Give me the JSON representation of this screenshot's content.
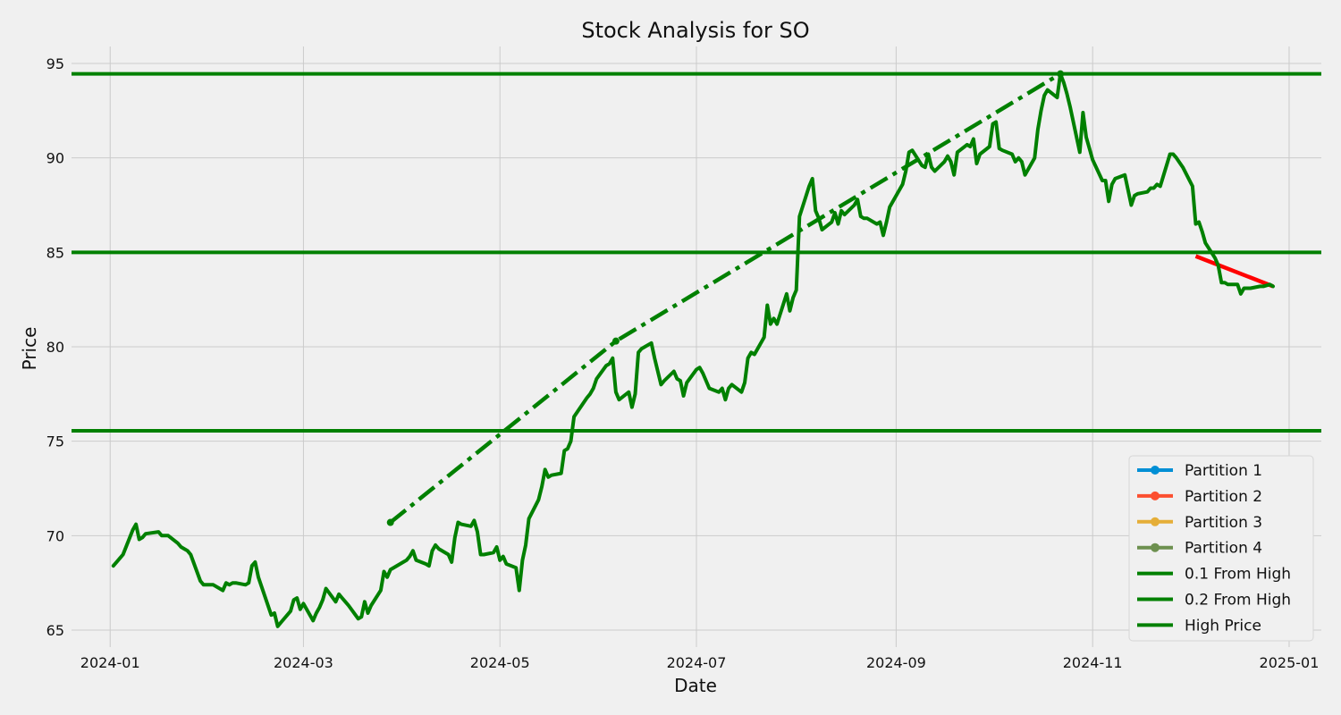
{
  "chart_data": {
    "type": "line",
    "title": "Stock Analysis for SO",
    "xlabel": "Date",
    "ylabel": "Price",
    "xlim": [
      "2023-12-20",
      "2025-01-11"
    ],
    "ylim": [
      64.1,
      95.9
    ],
    "x_ticks": [
      "2024-01",
      "2024-03",
      "2024-05",
      "2024-07",
      "2024-09",
      "2024-11",
      "2025-01"
    ],
    "y_ticks": [
      65,
      70,
      75,
      80,
      85,
      90,
      95
    ],
    "grid": true,
    "legend_position": "lower-right",
    "horizontal_lines": [
      {
        "name": "0.1 From High",
        "value": 85.0,
        "color": "#008000"
      },
      {
        "name": "0.2 From High",
        "value": 75.55,
        "color": "#008000"
      },
      {
        "name": "High Price",
        "value": 94.45,
        "color": "#008000"
      }
    ],
    "trend_lines": [
      {
        "style": "dashdot",
        "color": "#008000",
        "points": [
          [
            "2024-03-28",
            70.7
          ],
          [
            "2024-06-06",
            80.3
          ],
          [
            "2024-10-22",
            94.45
          ]
        ]
      },
      {
        "style": "solid",
        "color": "#ff0000",
        "points": [
          [
            "2024-12-03",
            84.8
          ],
          [
            "2024-12-27",
            83.2
          ]
        ]
      }
    ],
    "series": [
      {
        "name": "Partition 1",
        "color": "#008fd5",
        "points": [
          [
            "2024-01-02",
            68.4
          ],
          [
            "2024-01-03",
            68.6
          ],
          [
            "2024-01-04",
            68.8
          ],
          [
            "2024-01-05",
            69.0
          ],
          [
            "2024-01-08",
            70.3
          ],
          [
            "2024-01-09",
            70.6
          ],
          [
            "2024-01-10",
            69.8
          ],
          [
            "2024-01-11",
            69.9
          ],
          [
            "2024-01-12",
            70.1
          ],
          [
            "2024-01-16",
            70.2
          ],
          [
            "2024-01-17",
            70.0
          ],
          [
            "2024-01-18",
            70.0
          ],
          [
            "2024-01-19",
            70.0
          ],
          [
            "2024-01-22",
            69.6
          ],
          [
            "2024-01-23",
            69.4
          ],
          [
            "2024-01-24",
            69.3
          ],
          [
            "2024-01-25",
            69.2
          ],
          [
            "2024-01-26",
            69.0
          ],
          [
            "2024-01-29",
            67.6
          ],
          [
            "2024-01-30",
            67.4
          ],
          [
            "2024-01-31",
            67.4
          ],
          [
            "2024-02-01",
            67.4
          ],
          [
            "2024-02-02",
            67.4
          ],
          [
            "2024-02-05",
            67.1
          ],
          [
            "2024-02-06",
            67.5
          ],
          [
            "2024-02-07",
            67.4
          ],
          [
            "2024-02-08",
            67.5
          ],
          [
            "2024-02-09",
            67.5
          ],
          [
            "2024-02-12",
            67.4
          ],
          [
            "2024-02-13",
            67.5
          ],
          [
            "2024-02-14",
            68.4
          ],
          [
            "2024-02-15",
            68.6
          ],
          [
            "2024-02-16",
            67.8
          ],
          [
            "2024-02-20",
            65.8
          ],
          [
            "2024-02-21",
            65.9
          ],
          [
            "2024-02-22",
            65.2
          ],
          [
            "2024-02-23",
            65.4
          ],
          [
            "2024-02-26",
            66.0
          ],
          [
            "2024-02-27",
            66.6
          ],
          [
            "2024-02-28",
            66.7
          ],
          [
            "2024-02-29",
            66.1
          ],
          [
            "2024-03-01",
            66.4
          ],
          [
            "2024-03-04",
            65.5
          ],
          [
            "2024-03-05",
            65.9
          ],
          [
            "2024-03-06",
            66.2
          ],
          [
            "2024-03-07",
            66.6
          ],
          [
            "2024-03-08",
            67.2
          ],
          [
            "2024-03-11",
            66.5
          ],
          [
            "2024-03-12",
            66.9
          ],
          [
            "2024-03-13",
            66.7
          ],
          [
            "2024-03-14",
            66.5
          ],
          [
            "2024-03-15",
            66.3
          ],
          [
            "2024-03-18",
            65.6
          ],
          [
            "2024-03-19",
            65.7
          ],
          [
            "2024-03-20",
            66.5
          ],
          [
            "2024-03-21",
            65.9
          ],
          [
            "2024-03-22",
            66.3
          ],
          [
            "2024-03-25",
            67.1
          ],
          [
            "2024-03-26",
            68.1
          ],
          [
            "2024-03-27",
            67.8
          ],
          [
            "2024-03-28",
            68.2
          ]
        ]
      },
      {
        "name": "Partition 2",
        "color": "#fc4f30",
        "points": [
          [
            "2024-04-01",
            68.6
          ],
          [
            "2024-04-02",
            68.7
          ],
          [
            "2024-04-03",
            68.9
          ],
          [
            "2024-04-04",
            69.2
          ],
          [
            "2024-04-05",
            68.7
          ],
          [
            "2024-04-08",
            68.5
          ],
          [
            "2024-04-09",
            68.4
          ],
          [
            "2024-04-10",
            69.2
          ],
          [
            "2024-04-11",
            69.5
          ],
          [
            "2024-04-12",
            69.3
          ],
          [
            "2024-04-15",
            69.0
          ],
          [
            "2024-04-16",
            68.6
          ],
          [
            "2024-04-17",
            69.9
          ],
          [
            "2024-04-18",
            70.7
          ],
          [
            "2024-04-19",
            70.6
          ],
          [
            "2024-04-22",
            70.5
          ],
          [
            "2024-04-23",
            70.8
          ],
          [
            "2024-04-24",
            70.2
          ],
          [
            "2024-04-25",
            69.0
          ],
          [
            "2024-04-26",
            69.0
          ],
          [
            "2024-04-29",
            69.1
          ],
          [
            "2024-04-30",
            69.4
          ],
          [
            "2024-05-01",
            68.7
          ],
          [
            "2024-05-02",
            68.9
          ],
          [
            "2024-05-03",
            68.5
          ],
          [
            "2024-05-06",
            68.3
          ],
          [
            "2024-05-07",
            67.1
          ],
          [
            "2024-05-08",
            68.7
          ],
          [
            "2024-05-09",
            69.5
          ],
          [
            "2024-05-10",
            70.9
          ],
          [
            "2024-05-13",
            71.9
          ],
          [
            "2024-05-14",
            72.6
          ],
          [
            "2024-05-15",
            73.5
          ],
          [
            "2024-05-16",
            73.1
          ],
          [
            "2024-05-17",
            73.2
          ],
          [
            "2024-05-20",
            73.3
          ],
          [
            "2024-05-21",
            74.5
          ],
          [
            "2024-05-22",
            74.6
          ],
          [
            "2024-05-23",
            75.0
          ],
          [
            "2024-05-24",
            76.3
          ],
          [
            "2024-05-28",
            77.3
          ],
          [
            "2024-05-29",
            77.5
          ],
          [
            "2024-05-30",
            77.8
          ],
          [
            "2024-05-31",
            78.3
          ],
          [
            "2024-06-03",
            79.0
          ],
          [
            "2024-06-04",
            79.1
          ],
          [
            "2024-06-05",
            79.4
          ],
          [
            "2024-06-06",
            77.6
          ]
        ]
      },
      {
        "name": "Partition 3",
        "color": "#e5ae38",
        "points": [
          [
            "2024-06-07",
            77.2
          ],
          [
            "2024-06-10",
            77.6
          ],
          [
            "2024-06-11",
            76.8
          ],
          [
            "2024-06-12",
            77.5
          ],
          [
            "2024-06-13",
            79.7
          ],
          [
            "2024-06-14",
            79.9
          ],
          [
            "2024-06-17",
            80.2
          ],
          [
            "2024-06-18",
            79.4
          ],
          [
            "2024-06-20",
            78.0
          ],
          [
            "2024-06-21",
            78.2
          ],
          [
            "2024-06-24",
            78.7
          ],
          [
            "2024-06-25",
            78.3
          ],
          [
            "2024-06-26",
            78.2
          ],
          [
            "2024-06-27",
            77.4
          ],
          [
            "2024-06-28",
            78.1
          ],
          [
            "2024-07-01",
            78.8
          ],
          [
            "2024-07-02",
            78.9
          ],
          [
            "2024-07-03",
            78.6
          ],
          [
            "2024-07-05",
            77.8
          ],
          [
            "2024-07-08",
            77.6
          ],
          [
            "2024-07-09",
            77.8
          ],
          [
            "2024-07-10",
            77.2
          ],
          [
            "2024-07-11",
            77.8
          ],
          [
            "2024-07-12",
            78.0
          ],
          [
            "2024-07-15",
            77.6
          ],
          [
            "2024-07-16",
            78.1
          ],
          [
            "2024-07-17",
            79.4
          ],
          [
            "2024-07-18",
            79.7
          ],
          [
            "2024-07-19",
            79.6
          ],
          [
            "2024-07-22",
            80.5
          ],
          [
            "2024-07-23",
            82.2
          ],
          [
            "2024-07-24",
            81.2
          ],
          [
            "2024-07-25",
            81.5
          ],
          [
            "2024-07-26",
            81.2
          ],
          [
            "2024-07-29",
            82.8
          ],
          [
            "2024-07-30",
            81.9
          ],
          [
            "2024-07-31",
            82.6
          ],
          [
            "2024-08-01",
            83.0
          ],
          [
            "2024-08-02",
            86.9
          ],
          [
            "2024-08-05",
            88.5
          ],
          [
            "2024-08-06",
            88.9
          ],
          [
            "2024-08-07",
            87.2
          ],
          [
            "2024-08-08",
            86.8
          ],
          [
            "2024-08-09",
            86.2
          ],
          [
            "2024-08-12",
            86.6
          ],
          [
            "2024-08-13",
            87.1
          ],
          [
            "2024-08-14",
            86.5
          ],
          [
            "2024-08-15",
            87.2
          ],
          [
            "2024-08-16",
            87.0
          ],
          [
            "2024-08-19",
            87.5
          ],
          [
            "2024-08-20",
            87.8
          ],
          [
            "2024-08-21",
            86.9
          ],
          [
            "2024-08-22",
            86.8
          ],
          [
            "2024-08-23",
            86.8
          ],
          [
            "2024-08-26",
            86.5
          ],
          [
            "2024-08-27",
            86.6
          ],
          [
            "2024-08-28",
            85.9
          ],
          [
            "2024-08-29",
            86.6
          ],
          [
            "2024-08-30",
            87.4
          ]
        ]
      },
      {
        "name": "Partition 4",
        "color": "#6d904f",
        "points": [
          [
            "2024-09-03",
            88.6
          ],
          [
            "2024-09-04",
            89.3
          ],
          [
            "2024-09-05",
            90.3
          ],
          [
            "2024-09-06",
            90.4
          ],
          [
            "2024-09-09",
            89.6
          ],
          [
            "2024-09-10",
            89.5
          ],
          [
            "2024-09-11",
            90.2
          ],
          [
            "2024-09-12",
            89.5
          ],
          [
            "2024-09-13",
            89.3
          ],
          [
            "2024-09-16",
            89.8
          ],
          [
            "2024-09-17",
            90.1
          ],
          [
            "2024-09-18",
            89.8
          ],
          [
            "2024-09-19",
            89.1
          ],
          [
            "2024-09-20",
            90.3
          ],
          [
            "2024-09-23",
            90.7
          ],
          [
            "2024-09-24",
            90.6
          ],
          [
            "2024-09-25",
            91.0
          ],
          [
            "2024-09-26",
            89.7
          ],
          [
            "2024-09-27",
            90.2
          ],
          [
            "2024-09-30",
            90.6
          ],
          [
            "2024-10-01",
            91.8
          ],
          [
            "2024-10-02",
            91.9
          ],
          [
            "2024-10-03",
            90.5
          ],
          [
            "2024-10-04",
            90.4
          ],
          [
            "2024-10-07",
            90.2
          ],
          [
            "2024-10-08",
            89.8
          ],
          [
            "2024-10-09",
            90.0
          ],
          [
            "2024-10-10",
            89.8
          ],
          [
            "2024-10-11",
            89.1
          ],
          [
            "2024-10-14",
            90.0
          ],
          [
            "2024-10-15",
            91.5
          ],
          [
            "2024-10-16",
            92.5
          ],
          [
            "2024-10-17",
            93.3
          ],
          [
            "2024-10-18",
            93.6
          ],
          [
            "2024-10-21",
            93.2
          ],
          [
            "2024-10-22",
            94.45
          ],
          [
            "2024-10-23",
            94.0
          ],
          [
            "2024-10-24",
            93.4
          ],
          [
            "2024-10-25",
            92.7
          ],
          [
            "2024-10-28",
            90.3
          ],
          [
            "2024-10-29",
            92.4
          ],
          [
            "2024-10-30",
            91.1
          ],
          [
            "2024-10-31",
            90.5
          ],
          [
            "2024-11-01",
            89.9
          ],
          [
            "2024-11-04",
            88.8
          ],
          [
            "2024-11-05",
            88.8
          ],
          [
            "2024-11-06",
            87.7
          ],
          [
            "2024-11-07",
            88.6
          ],
          [
            "2024-11-08",
            88.9
          ],
          [
            "2024-11-11",
            89.1
          ],
          [
            "2024-11-12",
            88.3
          ],
          [
            "2024-11-13",
            87.5
          ],
          [
            "2024-11-14",
            88.0
          ],
          [
            "2024-11-15",
            88.1
          ],
          [
            "2024-11-18",
            88.2
          ],
          [
            "2024-11-19",
            88.4
          ],
          [
            "2024-11-20",
            88.4
          ],
          [
            "2024-11-21",
            88.6
          ],
          [
            "2024-11-22",
            88.5
          ],
          [
            "2024-11-25",
            90.2
          ],
          [
            "2024-11-26",
            90.2
          ],
          [
            "2024-11-27",
            90.0
          ],
          [
            "2024-11-29",
            89.5
          ],
          [
            "2024-12-02",
            88.5
          ],
          [
            "2024-12-03",
            86.5
          ],
          [
            "2024-12-04",
            86.6
          ],
          [
            "2024-12-05",
            86.1
          ],
          [
            "2024-12-06",
            85.5
          ],
          [
            "2024-12-09",
            84.7
          ],
          [
            "2024-12-10",
            84.3
          ],
          [
            "2024-12-11",
            83.4
          ],
          [
            "2024-12-12",
            83.4
          ],
          [
            "2024-12-13",
            83.3
          ],
          [
            "2024-12-16",
            83.3
          ],
          [
            "2024-12-17",
            82.8
          ],
          [
            "2024-12-18",
            83.1
          ],
          [
            "2024-12-19",
            83.1
          ],
          [
            "2024-12-20",
            83.1
          ],
          [
            "2024-12-23",
            83.2
          ],
          [
            "2024-12-24",
            83.2
          ],
          [
            "2024-12-26",
            83.3
          ],
          [
            "2024-12-27",
            83.2
          ]
        ]
      }
    ],
    "legend": [
      {
        "label": "Partition 1",
        "color": "#008fd5",
        "marker": true
      },
      {
        "label": "Partition 2",
        "color": "#fc4f30",
        "marker": true
      },
      {
        "label": "Partition 3",
        "color": "#e5ae38",
        "marker": true
      },
      {
        "label": "Partition 4",
        "color": "#6d904f",
        "marker": true
      },
      {
        "label": "0.1 From High",
        "color": "#008000",
        "marker": false
      },
      {
        "label": "0.2 From High",
        "color": "#008000",
        "marker": false
      },
      {
        "label": "High Price",
        "color": "#008000",
        "marker": false
      }
    ],
    "price_line_color": "#008000"
  }
}
